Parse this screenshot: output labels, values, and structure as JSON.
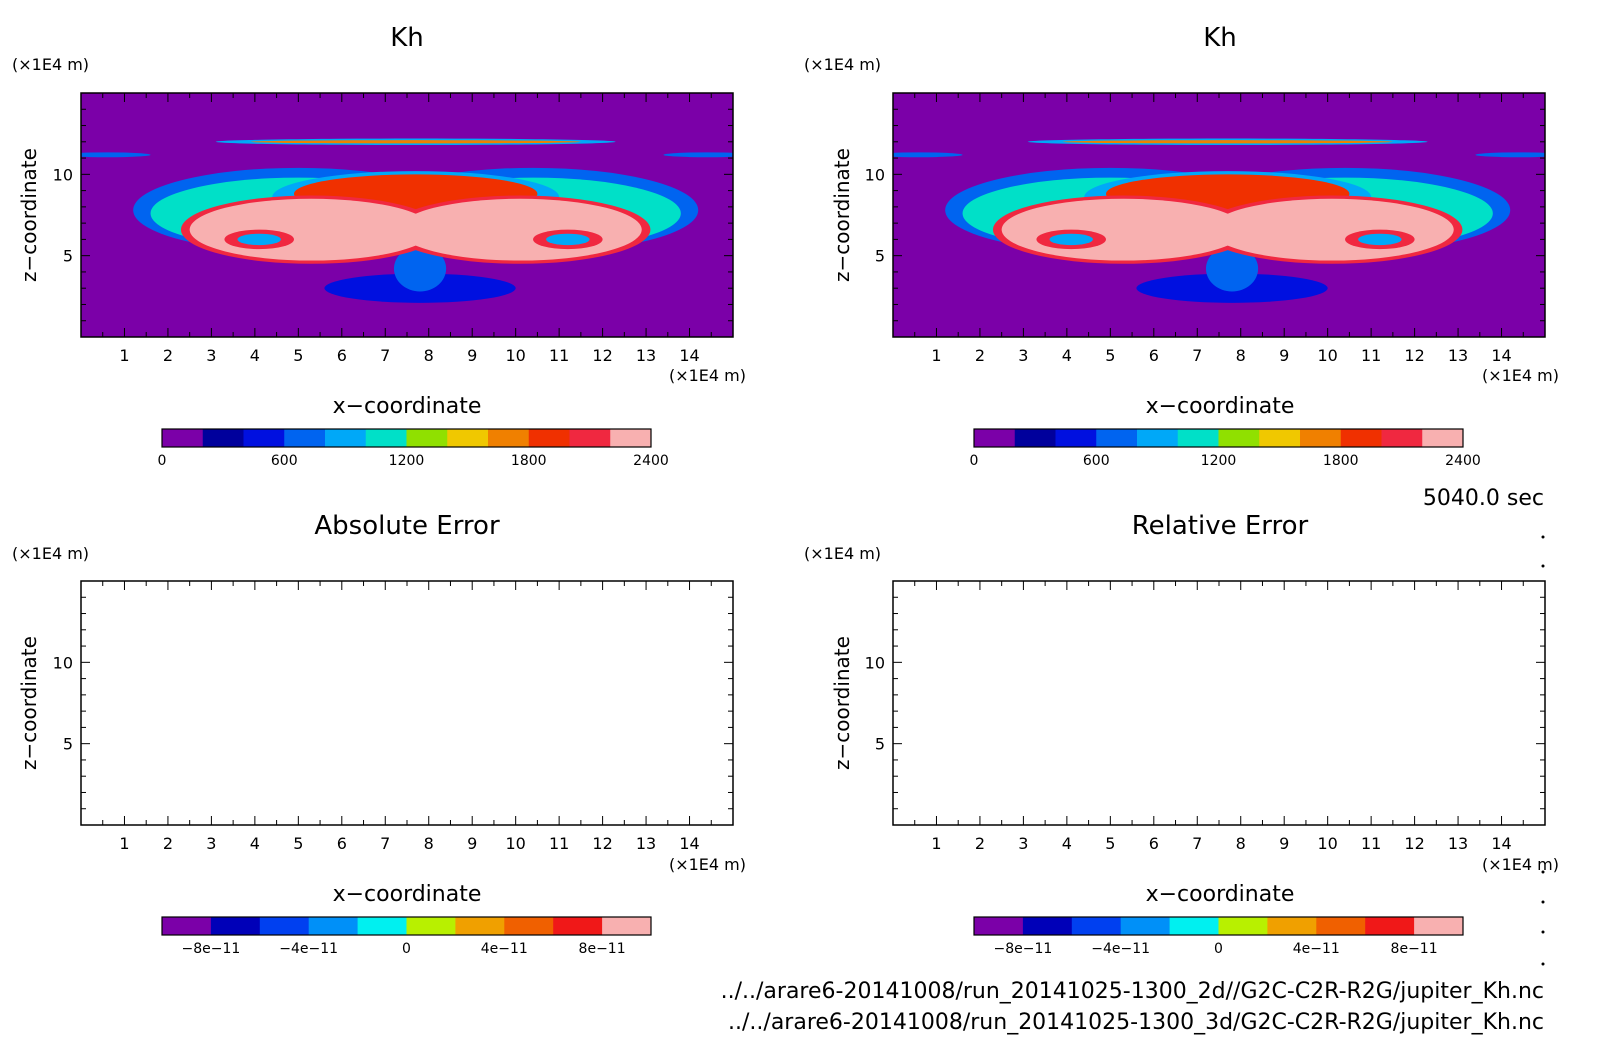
{
  "chart_data": [
    {
      "type": "heatmap",
      "title": "Kh",
      "xlabel": "x−coordinate",
      "ylabel": "z−coordinate",
      "x_unit": "(×1E4 m)",
      "y_unit": "(×1E4 m)",
      "xlim": [
        0,
        15
      ],
      "ylim": [
        0,
        15
      ],
      "x_ticks": [
        1,
        2,
        3,
        4,
        5,
        6,
        7,
        8,
        9,
        10,
        11,
        12,
        13,
        14
      ],
      "y_ticks": [
        5,
        10
      ],
      "colorbar": {
        "levels": [
          0,
          200,
          400,
          600,
          800,
          1000,
          1200,
          1400,
          1600,
          1800,
          2000,
          2200,
          2400
        ],
        "tick_labels": [
          {
            "value": 0,
            "label": "0"
          },
          {
            "value": 600,
            "label": "600"
          },
          {
            "value": 1200,
            "label": "1200"
          },
          {
            "value": 1800,
            "label": "1800"
          },
          {
            "value": 2400,
            "label": "2400"
          }
        ]
      },
      "field_features": [
        {
          "feature": "background",
          "value": 0
        },
        {
          "feature": "left vortex core region",
          "x_center": 5.5,
          "z_center": 6.0,
          "value": 2400
        },
        {
          "feature": "right vortex core region",
          "x_center": 10.0,
          "z_center": 6.0,
          "value": 2400
        },
        {
          "feature": "upper thin layer",
          "x_range": [
            3,
            12.5
          ],
          "z": 12.0,
          "value": 1400
        }
      ]
    },
    {
      "type": "heatmap",
      "title": "Kh",
      "xlabel": "x−coordinate",
      "ylabel": "z−coordinate",
      "x_unit": "(×1E4 m)",
      "y_unit": "(×1E4 m)",
      "xlim": [
        0,
        15
      ],
      "ylim": [
        0,
        15
      ],
      "x_ticks": [
        1,
        2,
        3,
        4,
        5,
        6,
        7,
        8,
        9,
        10,
        11,
        12,
        13,
        14
      ],
      "y_ticks": [
        5,
        10
      ],
      "colorbar": {
        "levels": [
          0,
          200,
          400,
          600,
          800,
          1000,
          1200,
          1400,
          1600,
          1800,
          2000,
          2200,
          2400
        ],
        "tick_labels": [
          {
            "value": 0,
            "label": "0"
          },
          {
            "value": 600,
            "label": "600"
          },
          {
            "value": 1200,
            "label": "1200"
          },
          {
            "value": 1800,
            "label": "1800"
          },
          {
            "value": 2400,
            "label": "2400"
          }
        ]
      },
      "field_features": [
        {
          "feature": "background",
          "value": 0
        },
        {
          "feature": "left vortex core region",
          "x_center": 5.5,
          "z_center": 6.0,
          "value": 2400
        },
        {
          "feature": "right vortex core region",
          "x_center": 10.0,
          "z_center": 6.0,
          "value": 2400
        },
        {
          "feature": "upper thin layer",
          "x_range": [
            3,
            12.5
          ],
          "z": 12.0,
          "value": 1400
        }
      ]
    },
    {
      "type": "heatmap",
      "title": "Absolute Error",
      "xlabel": "x−coordinate",
      "ylabel": "z−coordinate",
      "x_unit": "(×1E4 m)",
      "y_unit": "(×1E4 m)",
      "xlim": [
        0,
        15
      ],
      "ylim": [
        0,
        15
      ],
      "x_ticks": [
        1,
        2,
        3,
        4,
        5,
        6,
        7,
        8,
        9,
        10,
        11,
        12,
        13,
        14
      ],
      "y_ticks": [
        5,
        10
      ],
      "colorbar": {
        "levels": [
          -1e-10,
          -8e-11,
          -6e-11,
          -4e-11,
          -2e-11,
          0,
          2e-11,
          4e-11,
          6e-11,
          8e-11,
          1e-10
        ],
        "tick_labels": [
          {
            "value": -8e-11,
            "label": "−8e−11"
          },
          {
            "value": -4e-11,
            "label": "−4e−11"
          },
          {
            "value": 0,
            "label": "0"
          },
          {
            "value": 4e-11,
            "label": "4e−11"
          },
          {
            "value": 8e-11,
            "label": "8e−11"
          }
        ]
      },
      "field_features": []
    },
    {
      "type": "heatmap",
      "title": "Relative Error",
      "xlabel": "x−coordinate",
      "ylabel": "z−coordinate",
      "x_unit": "(×1E4 m)",
      "y_unit": "(×1E4 m)",
      "xlim": [
        0,
        15
      ],
      "ylim": [
        0,
        15
      ],
      "x_ticks": [
        1,
        2,
        3,
        4,
        5,
        6,
        7,
        8,
        9,
        10,
        11,
        12,
        13,
        14
      ],
      "y_ticks": [
        5,
        10
      ],
      "colorbar": {
        "levels": [
          -1e-10,
          -8e-11,
          -6e-11,
          -4e-11,
          -2e-11,
          0,
          2e-11,
          4e-11,
          6e-11,
          8e-11,
          1e-10
        ],
        "tick_labels": [
          {
            "value": -8e-11,
            "label": "−8e−11"
          },
          {
            "value": -4e-11,
            "label": "−4e−11"
          },
          {
            "value": 0,
            "label": "0"
          },
          {
            "value": 4e-11,
            "label": "4e−11"
          },
          {
            "value": 8e-11,
            "label": "8e−11"
          }
        ]
      },
      "field_features": []
    }
  ],
  "colors": {
    "kh_palette": [
      "#7b00a8",
      "#00009c",
      "#0010e0",
      "#0064f0",
      "#00a8f8",
      "#00e0c8",
      "#90e000",
      "#f0c800",
      "#f08000",
      "#f03000",
      "#f02840",
      "#f8b0b0"
    ],
    "err_palette": [
      "#7b00a8",
      "#0000b8",
      "#0040f0",
      "#0090f8",
      "#00f0f0",
      "#b8f000",
      "#f0a000",
      "#f06000",
      "#f01818",
      "#f8b0b0"
    ]
  },
  "timestamp": "5040.0 sec",
  "file_paths": [
    "../../arare6-20141008/run_20141025-1300_2d//G2C-C2R-R2G/jupiter_Kh.nc",
    "../../arare6-20141008/run_20141025-1300_3d/G2C-C2R-R2G/jupiter_Kh.nc"
  ]
}
